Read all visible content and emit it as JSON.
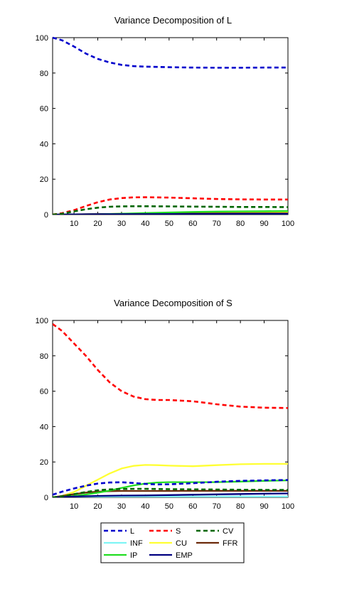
{
  "chart_data": [
    {
      "type": "line",
      "title": "Variance Decomposition of L",
      "xlim": [
        1,
        100
      ],
      "ylim": [
        0,
        100
      ],
      "xticks": [
        10,
        20,
        30,
        40,
        50,
        60,
        70,
        80,
        90,
        100
      ],
      "yticks": [
        0,
        20,
        40,
        60,
        80,
        100
      ],
      "grid": false,
      "series": [
        {
          "name": "L",
          "color": "#0000cc",
          "style": "dashed",
          "x": [
            1,
            5,
            10,
            15,
            20,
            25,
            30,
            35,
            40,
            50,
            60,
            70,
            80,
            90,
            100
          ],
          "y": [
            100,
            98.5,
            95,
            91,
            88,
            86,
            84.6,
            83.9,
            83.6,
            83.3,
            83.1,
            83.0,
            83.0,
            83.1,
            83.1
          ]
        },
        {
          "name": "S",
          "color": "#ff0000",
          "style": "dashed",
          "x": [
            1,
            5,
            10,
            15,
            20,
            25,
            30,
            35,
            40,
            50,
            60,
            70,
            80,
            90,
            100
          ],
          "y": [
            0,
            0.8,
            2.5,
            4.8,
            7,
            8.5,
            9.3,
            9.7,
            9.8,
            9.6,
            9.2,
            8.8,
            8.6,
            8.5,
            8.5
          ]
        },
        {
          "name": "CV",
          "color": "#006600",
          "style": "dashed",
          "x": [
            1,
            5,
            10,
            15,
            20,
            25,
            30,
            35,
            40,
            50,
            60,
            70,
            80,
            90,
            100
          ],
          "y": [
            0,
            0.5,
            1.8,
            3,
            3.9,
            4.4,
            4.6,
            4.7,
            4.7,
            4.6,
            4.5,
            4.4,
            4.3,
            4.3,
            4.2
          ]
        },
        {
          "name": "INF",
          "color": "#7ff5f5",
          "style": "solid",
          "x": [
            1,
            20,
            40,
            60,
            80,
            100
          ],
          "y": [
            0,
            0.2,
            0.3,
            0.4,
            0.5,
            0.5
          ]
        },
        {
          "name": "CU",
          "color": "#ffff33",
          "style": "solid",
          "x": [
            1,
            20,
            40,
            60,
            80,
            100
          ],
          "y": [
            0,
            0.3,
            0.6,
            0.9,
            1.1,
            1.2
          ]
        },
        {
          "name": "FFR",
          "color": "#6b2a0a",
          "style": "solid",
          "x": [
            1,
            20,
            40,
            60,
            80,
            100
          ],
          "y": [
            0,
            0.3,
            0.5,
            0.6,
            0.7,
            0.7
          ]
        },
        {
          "name": "IP",
          "color": "#22dd22",
          "style": "solid",
          "x": [
            1,
            20,
            30,
            40,
            50,
            60,
            70,
            80,
            90,
            100
          ],
          "y": [
            0,
            0.2,
            0.5,
            0.9,
            1.2,
            1.5,
            1.7,
            1.8,
            1.9,
            2.0
          ]
        },
        {
          "name": "EMP",
          "color": "#000080",
          "style": "solid",
          "x": [
            1,
            20,
            40,
            60,
            80,
            100
          ],
          "y": [
            0,
            0.2,
            0.3,
            0.3,
            0.4,
            0.4
          ]
        }
      ]
    },
    {
      "type": "line",
      "title": "Variance Decomposition of S",
      "xlim": [
        1,
        100
      ],
      "ylim": [
        0,
        100
      ],
      "xticks": [
        10,
        20,
        30,
        40,
        50,
        60,
        70,
        80,
        90,
        100
      ],
      "yticks": [
        0,
        20,
        40,
        60,
        80,
        100
      ],
      "grid": false,
      "series": [
        {
          "name": "L",
          "color": "#0000cc",
          "style": "dashed",
          "x": [
            1,
            5,
            10,
            15,
            20,
            25,
            30,
            35,
            40,
            45,
            50,
            60,
            70,
            80,
            90,
            100
          ],
          "y": [
            1.5,
            3.2,
            5,
            6.6,
            7.8,
            8.4,
            8.5,
            8.1,
            7.6,
            7.3,
            7.4,
            8.0,
            8.8,
            9.3,
            9.6,
            9.8
          ]
        },
        {
          "name": "S",
          "color": "#ff0000",
          "style": "dashed",
          "x": [
            1,
            5,
            10,
            15,
            20,
            25,
            30,
            35,
            40,
            45,
            50,
            60,
            65,
            70,
            80,
            90,
            100
          ],
          "y": [
            98,
            94,
            87,
            80,
            72,
            65,
            60,
            57,
            55.5,
            55,
            55,
            54.3,
            53.5,
            52.6,
            51.3,
            50.7,
            50.5
          ]
        },
        {
          "name": "CV",
          "color": "#006600",
          "style": "dashed",
          "x": [
            1,
            5,
            10,
            15,
            20,
            25,
            30,
            35,
            40,
            50,
            60,
            70,
            80,
            90,
            100
          ],
          "y": [
            0,
            0.6,
            1.8,
            3,
            4,
            4.5,
            4.7,
            4.8,
            4.8,
            4.6,
            4.5,
            4.4,
            4.3,
            4.2,
            4.2
          ]
        },
        {
          "name": "INF",
          "color": "#7ff5f5",
          "style": "solid",
          "x": [
            1,
            20,
            40,
            60,
            80,
            100
          ],
          "y": [
            0,
            0.2,
            0.3,
            0.4,
            0.5,
            0.5
          ]
        },
        {
          "name": "CU",
          "color": "#ffff33",
          "style": "solid",
          "x": [
            1,
            5,
            10,
            15,
            20,
            25,
            30,
            35,
            40,
            45,
            50,
            60,
            70,
            80,
            90,
            100
          ],
          "y": [
            0,
            0.8,
            3,
            6.5,
            10,
            13.5,
            16.3,
            17.8,
            18.3,
            18.2,
            17.9,
            17.6,
            18.2,
            18.7,
            18.9,
            18.9
          ]
        },
        {
          "name": "FFR",
          "color": "#6b2a0a",
          "style": "solid",
          "x": [
            1,
            5,
            10,
            15,
            20,
            25,
            30,
            35,
            40,
            50,
            60,
            70,
            80,
            90,
            100
          ],
          "y": [
            0,
            0.8,
            1.8,
            2.7,
            3.2,
            3.5,
            3.6,
            3.6,
            3.6,
            3.6,
            3.7,
            3.7,
            3.7,
            3.7,
            3.7
          ]
        },
        {
          "name": "IP",
          "color": "#22dd22",
          "style": "solid",
          "x": [
            1,
            5,
            10,
            15,
            20,
            25,
            30,
            35,
            40,
            45,
            50,
            60,
            70,
            80,
            90,
            100
          ],
          "y": [
            0,
            0.3,
            0.8,
            1.6,
            2.6,
            3.8,
            5.3,
            6.7,
            7.8,
            8.4,
            8.6,
            8.6,
            8.6,
            8.9,
            9.3,
            9.6
          ]
        },
        {
          "name": "EMP",
          "color": "#000080",
          "style": "solid",
          "x": [
            1,
            5,
            10,
            20,
            30,
            40,
            50,
            60,
            70,
            80,
            90,
            100
          ],
          "y": [
            0,
            0.2,
            0.5,
            0.8,
            1.0,
            1.1,
            1.3,
            1.5,
            1.7,
            1.9,
            2.1,
            2.2
          ]
        }
      ]
    }
  ],
  "legend": {
    "items": [
      {
        "name": "L",
        "color": "#0000cc",
        "style": "dashed"
      },
      {
        "name": "S",
        "color": "#ff0000",
        "style": "dashed"
      },
      {
        "name": "CV",
        "color": "#006600",
        "style": "dashed"
      },
      {
        "name": "INF",
        "color": "#7ff5f5",
        "style": "solid"
      },
      {
        "name": "CU",
        "color": "#ffff33",
        "style": "solid"
      },
      {
        "name": "FFR",
        "color": "#6b2a0a",
        "style": "solid"
      },
      {
        "name": "IP",
        "color": "#22dd22",
        "style": "solid"
      },
      {
        "name": "EMP",
        "color": "#000080",
        "style": "solid"
      }
    ]
  }
}
